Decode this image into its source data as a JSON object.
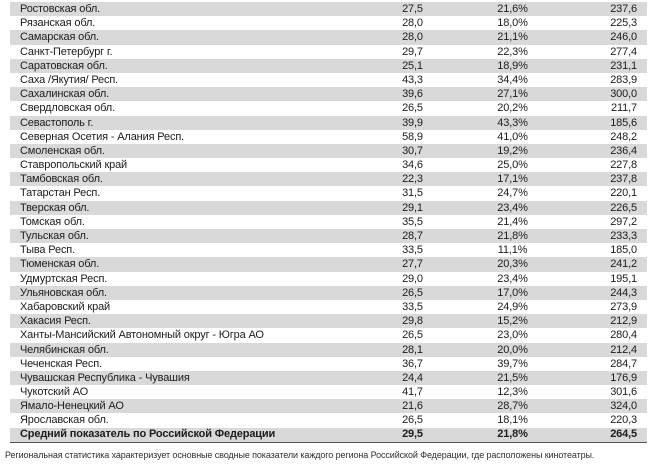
{
  "table": {
    "rows": [
      {
        "region": "Ростовская обл.",
        "v1": "27,5",
        "v2": "21,6%",
        "v3": "237,6"
      },
      {
        "region": "Рязанская обл.",
        "v1": "28,0",
        "v2": "18,0%",
        "v3": "225,3"
      },
      {
        "region": "Самарская обл.",
        "v1": "28,0",
        "v2": "21,1%",
        "v3": "246,0"
      },
      {
        "region": "Санкт-Петербург г.",
        "v1": "29,7",
        "v2": "22,3%",
        "v3": "277,4"
      },
      {
        "region": "Саратовская обл.",
        "v1": "25,1",
        "v2": "18,9%",
        "v3": "231,1"
      },
      {
        "region": "Саха /Якутия/ Респ.",
        "v1": "43,3",
        "v2": "34,4%",
        "v3": "283,9"
      },
      {
        "region": "Сахалинская обл.",
        "v1": "39,6",
        "v2": "27,1%",
        "v3": "300,0"
      },
      {
        "region": "Свердловская обл.",
        "v1": "26,5",
        "v2": "20,2%",
        "v3": "211,7"
      },
      {
        "region": "Севастополь г.",
        "v1": "39,9",
        "v2": "43,3%",
        "v3": "185,6"
      },
      {
        "region": "Северная Осетия - Алания Респ.",
        "v1": "58,9",
        "v2": "41,0%",
        "v3": "248,2"
      },
      {
        "region": "Смоленская обл.",
        "v1": "30,7",
        "v2": "19,2%",
        "v3": "236,4"
      },
      {
        "region": "Ставропольский край",
        "v1": "34,6",
        "v2": "25,0%",
        "v3": "227,8"
      },
      {
        "region": "Тамбовская обл.",
        "v1": "22,3",
        "v2": "17,1%",
        "v3": "237,8"
      },
      {
        "region": "Татарстан Респ.",
        "v1": "31,5",
        "v2": "24,7%",
        "v3": "220,1"
      },
      {
        "region": "Тверская обл.",
        "v1": "29,1",
        "v2": "23,4%",
        "v3": "226,5"
      },
      {
        "region": "Томская обл.",
        "v1": "35,5",
        "v2": "21,4%",
        "v3": "297,2"
      },
      {
        "region": "Тульская обл.",
        "v1": "28,7",
        "v2": "21,8%",
        "v3": "233,3"
      },
      {
        "region": "Тыва Респ.",
        "v1": "33,5",
        "v2": "11,1%",
        "v3": "185,0"
      },
      {
        "region": "Тюменская обл.",
        "v1": "27,7",
        "v2": "20,3%",
        "v3": "241,2"
      },
      {
        "region": "Удмуртская Респ.",
        "v1": "29,0",
        "v2": "23,4%",
        "v3": "195,1"
      },
      {
        "region": "Ульяновская обл.",
        "v1": "26,5",
        "v2": "17,0%",
        "v3": "244,3"
      },
      {
        "region": "Хабаровский край",
        "v1": "33,5",
        "v2": "24,9%",
        "v3": "273,9"
      },
      {
        "region": "Хакасия Респ.",
        "v1": "29,8",
        "v2": "15,2%",
        "v3": "212,9"
      },
      {
        "region": "Ханты-Мансийский Автономный округ - Югра АО",
        "v1": "26,5",
        "v2": "23,0%",
        "v3": "280,4"
      },
      {
        "region": "Челябинская обл.",
        "v1": "28,1",
        "v2": "20,0%",
        "v3": "212,4"
      },
      {
        "region": "Чеченская Респ.",
        "v1": "36,7",
        "v2": "39,7%",
        "v3": "284,7"
      },
      {
        "region": "Чувашская Республика - Чувашия",
        "v1": "24,4",
        "v2": "21,5%",
        "v3": "176,9"
      },
      {
        "region": "Чукотский АО",
        "v1": "41,7",
        "v2": "12,3%",
        "v3": "301,6"
      },
      {
        "region": "Ямало-Ненецкий АО",
        "v1": "21,6",
        "v2": "28,7%",
        "v3": "324,0"
      },
      {
        "region": "Ярославская обл.",
        "v1": "26,5",
        "v2": "18,1%",
        "v3": "220,3"
      }
    ],
    "footer": {
      "region": "Средний показатель по Российской Федерации",
      "v1": "29,5",
      "v2": "21,8%",
      "v3": "264,5"
    }
  },
  "footnote": "Региональная статистика характеризует основные сводные показатели каждого региона Российской Федерации, где расположены кинотеатры.",
  "colors": {
    "stripe": "#d9d9d9",
    "text": "#1c1c1c",
    "footer_border": "#555555",
    "footnote_text": "#303030"
  }
}
